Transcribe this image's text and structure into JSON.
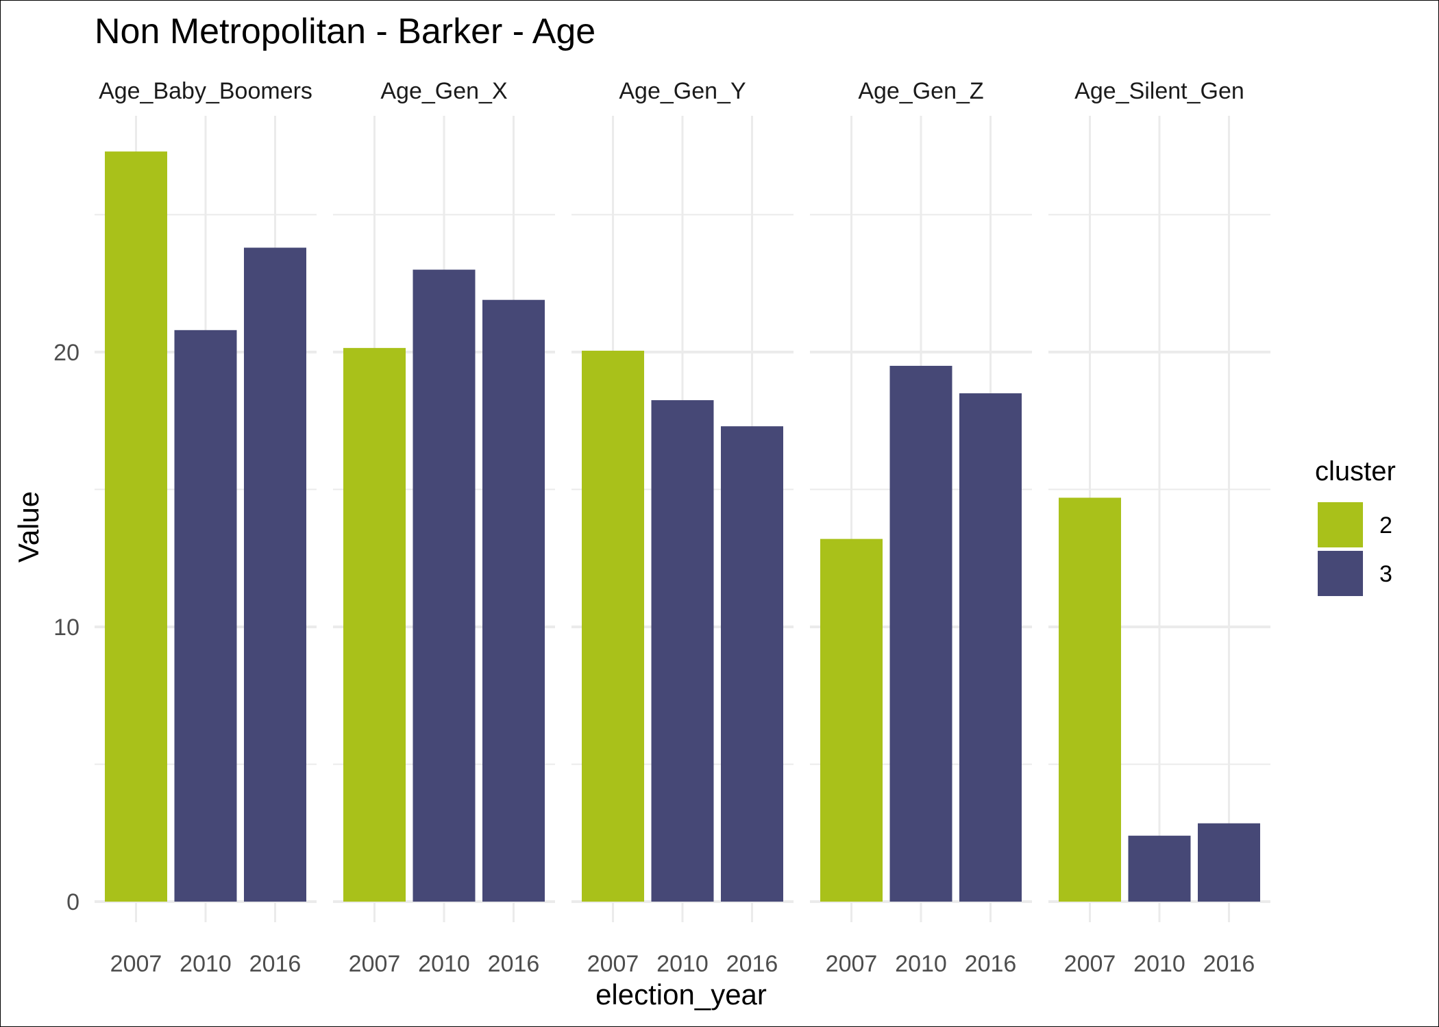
{
  "chart_data": {
    "type": "bar",
    "title": "Non Metropolitan - Barker - Age",
    "xlabel": "election_year",
    "ylabel": "Value",
    "facets": [
      "Age_Baby_Boomers",
      "Age_Gen_X",
      "Age_Gen_Y",
      "Age_Gen_Z",
      "Age_Silent_Gen"
    ],
    "categories": [
      "2007",
      "2010",
      "2016"
    ],
    "cluster_by_category": [
      "2",
      "3",
      "3"
    ],
    "values": {
      "Age_Baby_Boomers": [
        27.3,
        20.8,
        23.8
      ],
      "Age_Gen_X": [
        20.15,
        23.0,
        21.9
      ],
      "Age_Gen_Y": [
        20.05,
        18.25,
        17.3
      ],
      "Age_Gen_Z": [
        13.2,
        19.5,
        18.5
      ],
      "Age_Silent_Gen": [
        14.7,
        2.4,
        2.85
      ]
    },
    "ylim": [
      0,
      28.6
    ],
    "yticks": [
      0,
      10,
      20
    ],
    "grid": true,
    "legend": {
      "title": "cluster",
      "position": "right",
      "entries": [
        {
          "label": "2",
          "color": "#a9c11a"
        },
        {
          "label": "3",
          "color": "#464876"
        }
      ]
    }
  }
}
